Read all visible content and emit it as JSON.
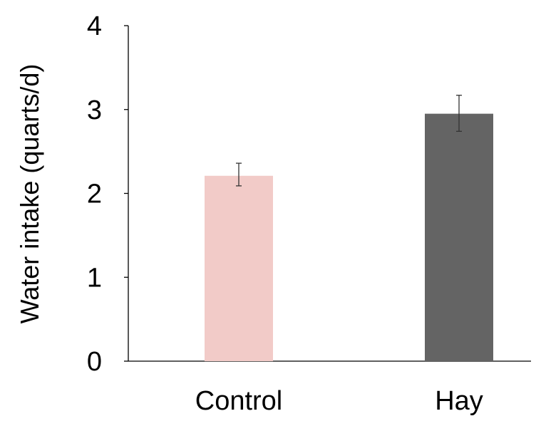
{
  "chart_data": {
    "type": "bar",
    "title": "",
    "xlabel": "",
    "ylabel": "Water intake (quarts/d)",
    "categories": [
      "Control",
      "Hay"
    ],
    "values": [
      2.21,
      2.95
    ],
    "errors": [
      [
        2.09,
        2.36
      ],
      [
        2.74,
        3.17
      ]
    ],
    "colors": [
      "#f2cbc8",
      "#646464"
    ],
    "ylim": [
      0,
      4
    ],
    "yticks": [
      "0",
      "1",
      "2",
      "3",
      "4"
    ],
    "grid": false,
    "legend": "none"
  }
}
